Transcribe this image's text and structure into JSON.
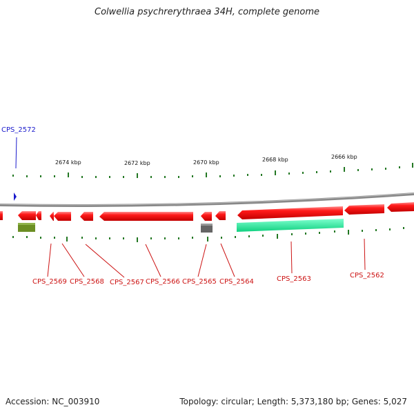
{
  "title": "Colwellia psychrerythraea 34H, complete genome",
  "footer": {
    "accession": "Accession: NC_003910",
    "topology": "Topology: circular; Length: 5,373,180 bp; Genes: 5,027"
  },
  "axis_labels": [
    "2674 kbp",
    "2672 kbp",
    "2670 kbp",
    "2668 kbp",
    "2666 kbp"
  ],
  "gene_labels": {
    "forward": [
      "CPS_2572"
    ],
    "reverse": [
      "CPS_2569",
      "CPS_2568",
      "CPS_2567",
      "CPS_2566",
      "CPS_2565",
      "CPS_2564",
      "CPS_2563",
      "CPS_2562"
    ]
  },
  "colors": {
    "cds": "#ee1111",
    "forward_label": "#1a1acc",
    "reverse_label": "#cc1111",
    "tick": "#227722",
    "backbone": "#8a8a8a",
    "rna": "#22ee99",
    "olive": "#6b8e23",
    "gray_feature": "#666666"
  }
}
